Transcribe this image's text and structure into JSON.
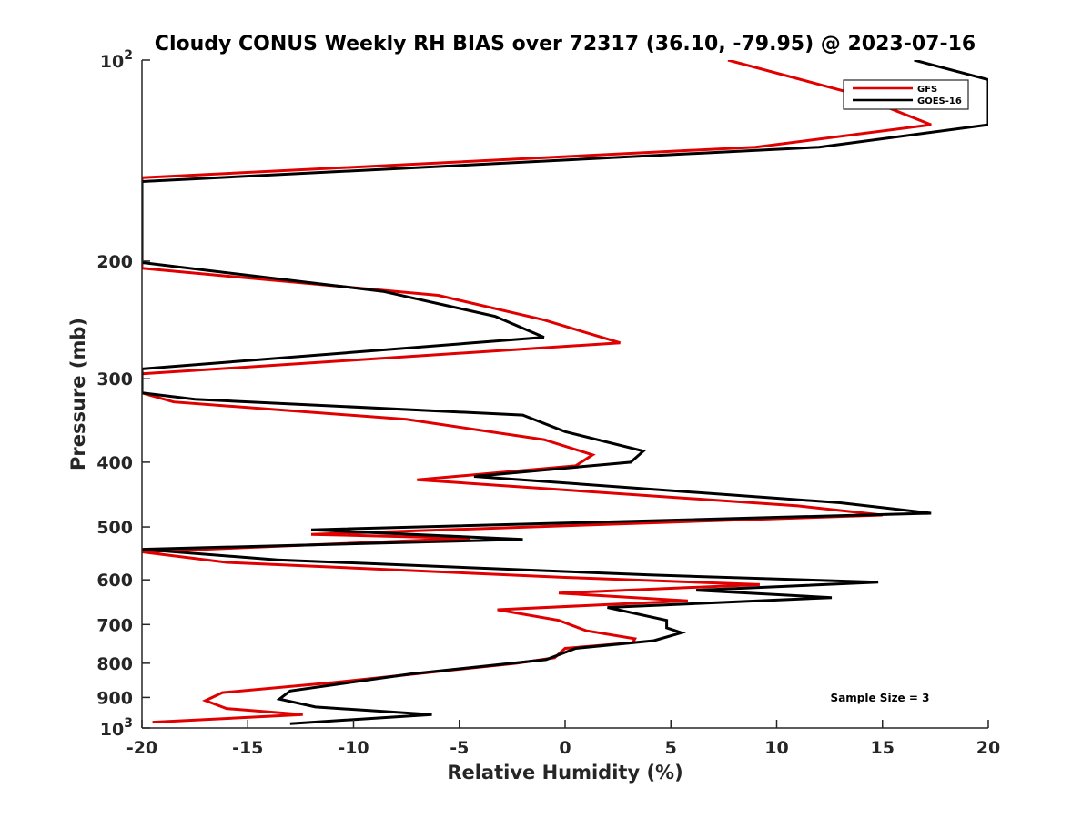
{
  "chart_data": {
    "type": "line",
    "title": "Cloudy CONUS Weekly RH BIAS over 72317 (36.10, -79.95) @ 2023-07-16",
    "xlabel": "Relative Humidity (%)",
    "ylabel": "Pressure (mb)",
    "xlim": [
      -20,
      20
    ],
    "ylim": [
      100,
      1000
    ],
    "y_scale": "log",
    "y_reversed": true,
    "grid": false,
    "legend_position": "top-right",
    "x_ticks": [
      {
        "value": -20,
        "label": "-20"
      },
      {
        "value": -15,
        "label": "-15"
      },
      {
        "value": -10,
        "label": "-10"
      },
      {
        "value": -5,
        "label": "-5"
      },
      {
        "value": 0,
        "label": "0"
      },
      {
        "value": 5,
        "label": "5"
      },
      {
        "value": 10,
        "label": "10"
      },
      {
        "value": 15,
        "label": "15"
      },
      {
        "value": 20,
        "label": "20"
      }
    ],
    "y_ticks": [
      {
        "value": 100,
        "base": "10",
        "exp": "2"
      },
      {
        "value": 200,
        "label": "200"
      },
      {
        "value": 300,
        "label": "300"
      },
      {
        "value": 400,
        "label": "400"
      },
      {
        "value": 500,
        "label": "500"
      },
      {
        "value": 600,
        "label": "600"
      },
      {
        "value": 700,
        "label": "700"
      },
      {
        "value": 800,
        "label": "800"
      },
      {
        "value": 900,
        "label": "900"
      },
      {
        "value": 1000,
        "base": "10",
        "exp": "3"
      }
    ],
    "annotation": "Sample Size = 3",
    "series": [
      {
        "name": "GFS",
        "color": "#e00000",
        "points": [
          [
            7.7,
            100
          ],
          [
            13.5,
            112
          ],
          [
            17.3,
            125
          ],
          [
            9,
            135
          ],
          [
            -20,
            150
          ],
          [
            -20,
            205
          ],
          [
            -6,
            225
          ],
          [
            -1,
            245
          ],
          [
            2.6,
            265
          ],
          [
            -20,
            295
          ],
          [
            -20,
            315
          ],
          [
            -18.5,
            325
          ],
          [
            -7.5,
            345
          ],
          [
            -1,
            370
          ],
          [
            1.3,
            390
          ],
          [
            0.5,
            405
          ],
          [
            -7,
            425
          ],
          [
            11,
            465
          ],
          [
            15,
            480
          ],
          [
            -12,
            513
          ],
          [
            -4.5,
            520
          ],
          [
            -20,
            545
          ],
          [
            -16,
            565
          ],
          [
            0,
            595
          ],
          [
            9.2,
            610
          ],
          [
            -0.3,
            628
          ],
          [
            5.8,
            645
          ],
          [
            -3.2,
            665
          ],
          [
            -0.3,
            690
          ],
          [
            1,
            715
          ],
          [
            3.3,
            735
          ],
          [
            3.2,
            745
          ],
          [
            0,
            760
          ],
          [
            -0.5,
            785
          ],
          [
            -2.3,
            800
          ],
          [
            -11,
            855
          ],
          [
            -16.2,
            885
          ],
          [
            -17,
            910
          ],
          [
            -16,
            935
          ],
          [
            -12.4,
            955
          ],
          [
            -19.5,
            980
          ]
        ]
      },
      {
        "name": "GOES-16",
        "color": "#000000",
        "points": [
          [
            16.5,
            100
          ],
          [
            20,
            107
          ],
          [
            20,
            110
          ],
          [
            20,
            125
          ],
          [
            12,
            135
          ],
          [
            -20,
            152
          ],
          [
            -20,
            201
          ],
          [
            -8.6,
            222
          ],
          [
            -3.3,
            242
          ],
          [
            -1,
            260
          ],
          [
            -20,
            290
          ],
          [
            -20,
            315
          ],
          [
            -17.5,
            322
          ],
          [
            -2,
            340
          ],
          [
            0,
            360
          ],
          [
            3.7,
            385
          ],
          [
            3.1,
            400
          ],
          [
            -4.3,
            420
          ],
          [
            13,
            460
          ],
          [
            17.3,
            477
          ],
          [
            -12,
            505
          ],
          [
            -2,
            522
          ],
          [
            -20,
            540
          ],
          [
            -13.6,
            560
          ],
          [
            4,
            590
          ],
          [
            14.8,
            605
          ],
          [
            6.2,
            622
          ],
          [
            12.6,
            638
          ],
          [
            2,
            660
          ],
          [
            4.8,
            690
          ],
          [
            4.8,
            708
          ],
          [
            5.5,
            720
          ],
          [
            4.2,
            740
          ],
          [
            0.5,
            760
          ],
          [
            -0.9,
            790
          ],
          [
            -7.3,
            830
          ],
          [
            -13,
            880
          ],
          [
            -13.5,
            905
          ],
          [
            -11.8,
            930
          ],
          [
            -6.3,
            955
          ],
          [
            -13,
            985
          ]
        ]
      }
    ]
  }
}
